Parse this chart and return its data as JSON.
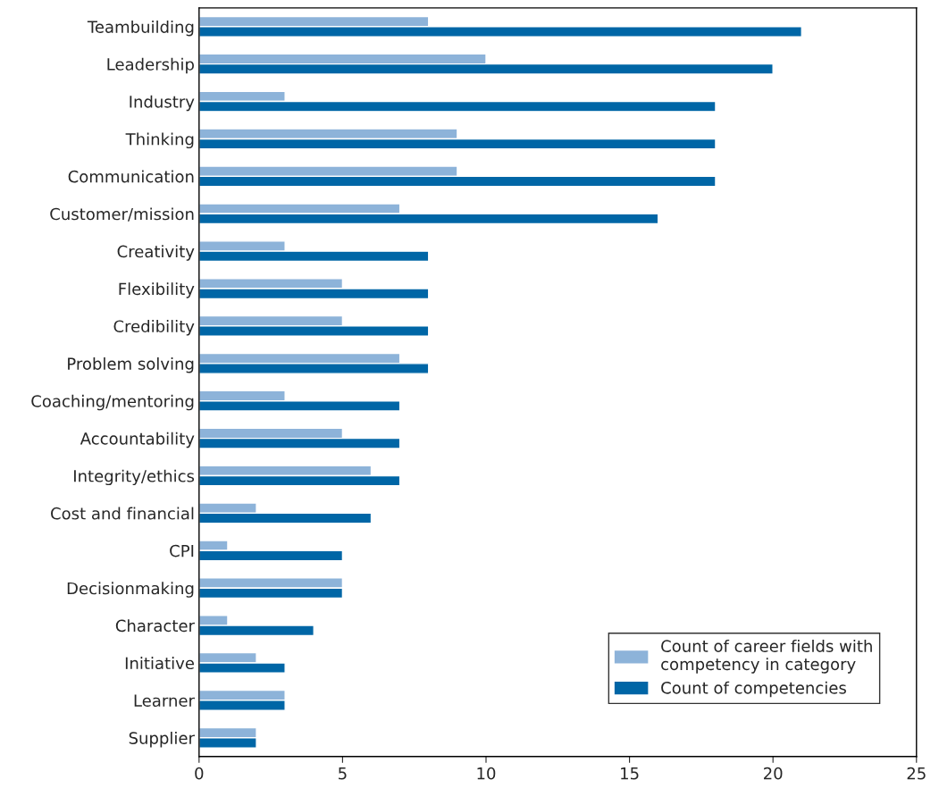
{
  "chart_data": {
    "type": "bar",
    "orientation": "horizontal",
    "categories": [
      "Teambuilding",
      "Leadership",
      "Industry",
      "Thinking",
      "Communication",
      "Customer/mission",
      "Creativity",
      "Flexibility",
      "Credibility",
      "Problem solving",
      "Coaching/mentoring",
      "Accountability",
      "Integrity/ethics",
      "Cost and financial",
      "CPI",
      "Decisionmaking",
      "Character",
      "Initiative",
      "Learner",
      "Supplier"
    ],
    "series": [
      {
        "name": "Count of career fields with\ncompetency in category",
        "color": "#8db3d9",
        "values": [
          8,
          10,
          3,
          9,
          9,
          7,
          3,
          5,
          5,
          7,
          3,
          5,
          6,
          2,
          1,
          5,
          1,
          2,
          3,
          2
        ]
      },
      {
        "name": "Count of competencies",
        "color": "#0066a6",
        "values": [
          21,
          20,
          18,
          18,
          18,
          16,
          8,
          8,
          8,
          8,
          7,
          7,
          7,
          6,
          5,
          5,
          4,
          3,
          3,
          2
        ]
      }
    ],
    "xlim": [
      0,
      25
    ],
    "xticks": [
      0,
      5,
      10,
      15,
      20,
      25
    ],
    "grid": false,
    "legend": "bottom right"
  }
}
